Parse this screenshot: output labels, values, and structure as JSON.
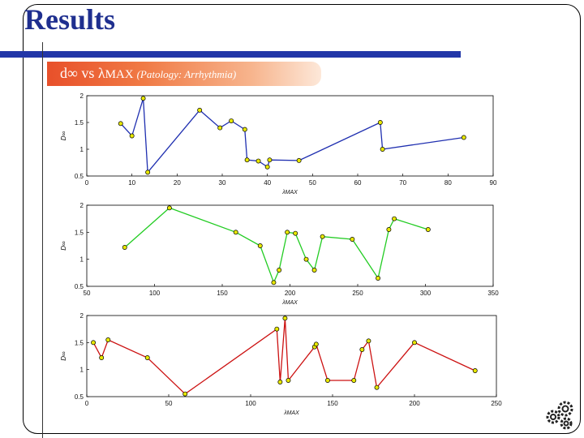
{
  "slide": {
    "title": "Results",
    "subtitle_main": "d∞ vs λ",
    "subtitle_sub": "MAX",
    "subtitle_note": "(Patology: Arrhythmia)"
  },
  "colors": {
    "title": "#1f2f8f",
    "rule": "#2236a8",
    "series_1": "#1f2fb0",
    "series_2": "#22cc22",
    "series_3": "#cc1111",
    "marker": "#e8e800"
  },
  "icons": [
    "gears-icon"
  ],
  "chart_data": [
    {
      "type": "line",
      "ylabel": "D∞",
      "xlabel": "λMAX",
      "xlim": [
        0,
        90
      ],
      "ylim": [
        0.5,
        2
      ],
      "xticks": [
        "0",
        "10",
        "20",
        "30",
        "40",
        "50",
        "60",
        "70",
        "80",
        "90"
      ],
      "yticks": [
        "0.5",
        "1",
        "1.5",
        "2"
      ],
      "series": [
        {
          "color": "#1f2fb0",
          "x": [
            7.5,
            10,
            12.5,
            13.5,
            25,
            29.5,
            32,
            35,
            35.5,
            38,
            40,
            40.5,
            47,
            65,
            65.5,
            83.5
          ],
          "y": [
            1.48,
            1.25,
            1.95,
            0.57,
            1.73,
            1.4,
            1.53,
            1.37,
            0.8,
            0.78,
            0.67,
            0.8,
            0.79,
            1.5,
            1.0,
            1.22
          ]
        }
      ]
    },
    {
      "type": "line",
      "ylabel": "D∞",
      "xlabel": "λMAX",
      "xlim": [
        50,
        350
      ],
      "ylim": [
        0.5,
        2
      ],
      "xticks": [
        "50",
        "100",
        "150",
        "200",
        "250",
        "300",
        "350"
      ],
      "yticks": [
        "0.5",
        "1",
        "1.5",
        "2"
      ],
      "series": [
        {
          "color": "#22cc22",
          "x": [
            78,
            111,
            160,
            178,
            188,
            192,
            198,
            204,
            212,
            218,
            224,
            246,
            265,
            273,
            277,
            302
          ],
          "y": [
            1.22,
            1.95,
            1.5,
            1.25,
            0.57,
            0.8,
            1.5,
            1.48,
            1.0,
            0.8,
            1.42,
            1.37,
            0.65,
            1.55,
            1.75,
            1.55
          ]
        }
      ]
    },
    {
      "type": "line",
      "ylabel": "D∞",
      "xlabel": "λMAX",
      "xlim": [
        0,
        250
      ],
      "ylim": [
        0.5,
        2
      ],
      "xticks": [
        "0",
        "50",
        "100",
        "150",
        "200",
        "250"
      ],
      "yticks": [
        "0.5",
        "1",
        "1.5",
        "2"
      ],
      "series": [
        {
          "color": "#cc1111",
          "x": [
            4,
            9,
            13,
            37,
            60,
            116,
            118,
            121,
            123,
            139,
            140,
            147,
            163,
            168,
            172,
            177,
            200,
            237
          ],
          "y": [
            1.5,
            1.22,
            1.55,
            1.22,
            0.55,
            1.75,
            0.77,
            1.95,
            0.8,
            1.42,
            1.47,
            0.8,
            0.8,
            1.37,
            1.53,
            0.67,
            1.5,
            0.98
          ]
        }
      ]
    }
  ]
}
